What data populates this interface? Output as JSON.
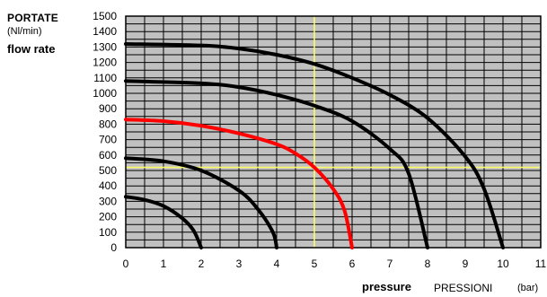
{
  "chart_data": {
    "type": "line",
    "ylabel_lines": [
      "PORTATE",
      "(Nl/min)",
      "flow rate"
    ],
    "xlabel": {
      "bold": "pressure",
      "normal": "PRESSIONI",
      "unit": "(bar)"
    },
    "xlim": [
      0,
      11
    ],
    "ylim": [
      0,
      1500
    ],
    "xticks": [
      0,
      1,
      2,
      3,
      4,
      5,
      6,
      7,
      8,
      9,
      10,
      11
    ],
    "yticks": [
      0,
      100,
      200,
      300,
      400,
      500,
      600,
      700,
      800,
      900,
      1000,
      1100,
      1200,
      1300,
      1400,
      1500
    ],
    "grid": true,
    "background_color": "#c0c0c0",
    "grid_color": "#000000",
    "reference_lines": {
      "x": 5,
      "y": 520,
      "color": "#ffff66"
    },
    "series": [
      {
        "color": "#000000",
        "points": [
          [
            0,
            330
          ],
          [
            0.5,
            310
          ],
          [
            1,
            270
          ],
          [
            1.5,
            190
          ],
          [
            1.8,
            110
          ],
          [
            2,
            0
          ]
        ]
      },
      {
        "color": "#000000",
        "points": [
          [
            0,
            580
          ],
          [
            1,
            560
          ],
          [
            2,
            500
          ],
          [
            3,
            370
          ],
          [
            3.5,
            250
          ],
          [
            3.9,
            100
          ],
          [
            4,
            0
          ]
        ]
      },
      {
        "color": "#ff0000",
        "points": [
          [
            0,
            830
          ],
          [
            1,
            820
          ],
          [
            2,
            790
          ],
          [
            3,
            740
          ],
          [
            4,
            670
          ],
          [
            4.5,
            610
          ],
          [
            5,
            520
          ],
          [
            5.5,
            380
          ],
          [
            5.8,
            240
          ],
          [
            6,
            0
          ]
        ]
      },
      {
        "color": "#000000",
        "points": [
          [
            0,
            1080
          ],
          [
            2,
            1065
          ],
          [
            3,
            1040
          ],
          [
            4,
            990
          ],
          [
            5,
            920
          ],
          [
            6,
            820
          ],
          [
            7,
            640
          ],
          [
            7.5,
            480
          ],
          [
            8,
            0
          ]
        ]
      },
      {
        "color": "#000000",
        "points": [
          [
            0,
            1320
          ],
          [
            2,
            1310
          ],
          [
            3,
            1290
          ],
          [
            4,
            1250
          ],
          [
            5,
            1190
          ],
          [
            6,
            1100
          ],
          [
            7,
            990
          ],
          [
            8,
            840
          ],
          [
            9,
            590
          ],
          [
            9.5,
            380
          ],
          [
            10,
            0
          ]
        ]
      }
    ]
  }
}
